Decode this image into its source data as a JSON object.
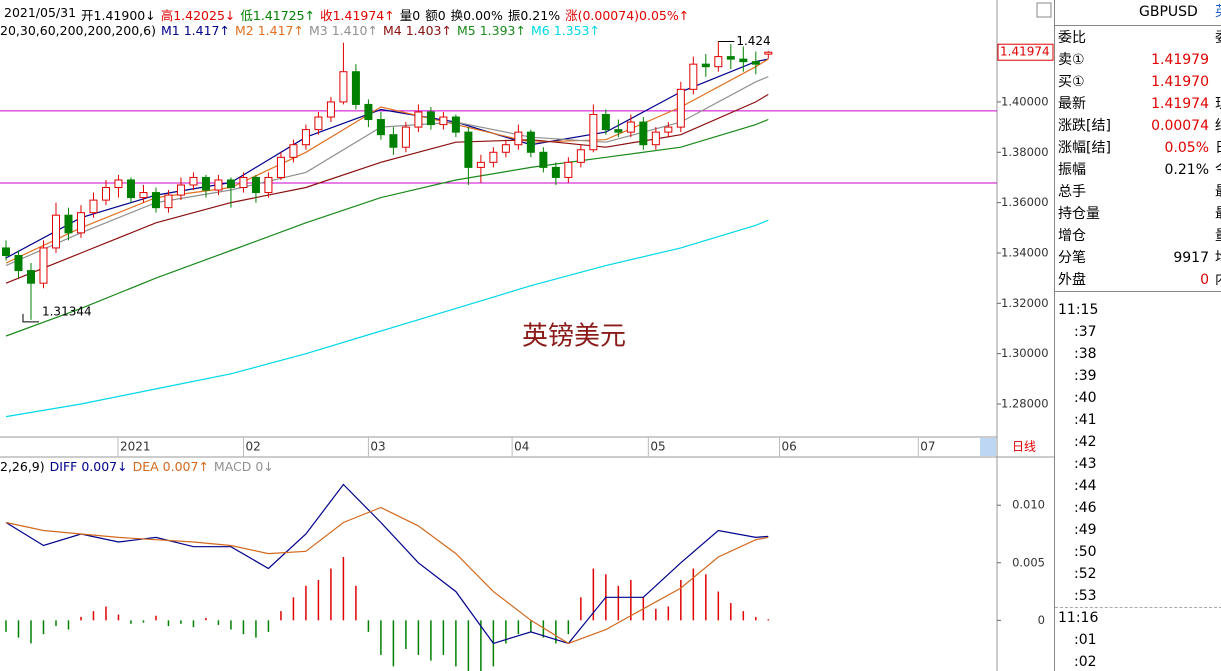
{
  "header": {
    "items": [
      {
        "text": "2021/05/31",
        "color": "#000000"
      },
      {
        "text": "开1.41900↓",
        "color": "#000000"
      },
      {
        "text": "高1.42025↓",
        "color": "#e00000"
      },
      {
        "text": "低1.41725↑",
        "color": "#008000"
      },
      {
        "text": "收1.41974↑",
        "color": "#e00000"
      },
      {
        "text": "量0",
        "color": "#000000"
      },
      {
        "text": "额0",
        "color": "#000000"
      },
      {
        "text": "换0.00%",
        "color": "#000000"
      },
      {
        "text": "振0.21%",
        "color": "#000000"
      },
      {
        "text": "涨(0.00074)0.05%↑",
        "color": "#e00000"
      }
    ],
    "ma_params": "20,30,60,200,200,200,6)"
  },
  "chart_data": [
    {
      "type": "candlestick",
      "up_color": "#e00000",
      "down_color": "#008000",
      "xlim": [
        -0.48,
        79.3
      ],
      "xticks": [
        {
          "value": 8.96,
          "label": "2021"
        },
        {
          "value": 19,
          "label": "02"
        },
        {
          "value": 29,
          "label": "03"
        },
        {
          "value": 40.5,
          "label": "04"
        },
        {
          "value": 51.4,
          "label": "05"
        },
        {
          "value": 61.9,
          "label": "06"
        },
        {
          "value": 73,
          "label": "07"
        }
      ],
      "ylim": [
        1.2669,
        1.4385
      ],
      "yticks": [
        {
          "value": 1.28,
          "label": "1.28000"
        },
        {
          "value": 1.3,
          "label": "1.30000"
        },
        {
          "value": 1.32,
          "label": "1.32000"
        },
        {
          "value": 1.34,
          "label": "1.34000"
        },
        {
          "value": 1.36,
          "label": "1.36000"
        },
        {
          "value": 1.38,
          "label": "1.38000"
        },
        {
          "value": 1.4,
          "label": "1.40000"
        }
      ],
      "hlines": [
        1.39642,
        1.3678
      ],
      "hline_color": "#cc00cc",
      "watermark": "英镑美元",
      "period_label": "日线",
      "candles": [
        [
          1.342,
          1.345,
          1.337,
          1.339
        ],
        [
          1.339,
          1.341,
          1.33,
          1.333
        ],
        [
          1.333,
          1.336,
          1.31344,
          1.328
        ],
        [
          1.328,
          1.345,
          1.326,
          1.342
        ],
        [
          1.342,
          1.36,
          1.34,
          1.355
        ],
        [
          1.355,
          1.358,
          1.345,
          1.348
        ],
        [
          1.348,
          1.359,
          1.346,
          1.356
        ],
        [
          1.356,
          1.364,
          1.354,
          1.361
        ],
        [
          1.361,
          1.369,
          1.359,
          1.366
        ],
        [
          1.366,
          1.371,
          1.362,
          1.369
        ],
        [
          1.369,
          1.37,
          1.36,
          1.362
        ],
        [
          1.362,
          1.367,
          1.36,
          1.364
        ],
        [
          1.364,
          1.366,
          1.356,
          1.358
        ],
        [
          1.358,
          1.365,
          1.356,
          1.363
        ],
        [
          1.363,
          1.37,
          1.361,
          1.367
        ],
        [
          1.367,
          1.372,
          1.365,
          1.37
        ],
        [
          1.37,
          1.371,
          1.362,
          1.365
        ],
        [
          1.365,
          1.371,
          1.363,
          1.369
        ],
        [
          1.369,
          1.37,
          1.358,
          1.366
        ],
        [
          1.366,
          1.372,
          1.364,
          1.37
        ],
        [
          1.37,
          1.371,
          1.36,
          1.364
        ],
        [
          1.364,
          1.372,
          1.362,
          1.37
        ],
        [
          1.37,
          1.38,
          1.369,
          1.378
        ],
        [
          1.378,
          1.385,
          1.376,
          1.383
        ],
        [
          1.383,
          1.391,
          1.381,
          1.389
        ],
        [
          1.389,
          1.396,
          1.387,
          1.394
        ],
        [
          1.394,
          1.402,
          1.392,
          1.4
        ],
        [
          1.4,
          1.42353,
          1.399,
          1.412
        ],
        [
          1.412,
          1.415,
          1.397,
          1.399
        ],
        [
          1.399,
          1.401,
          1.39,
          1.393
        ],
        [
          1.393,
          1.396,
          1.385,
          1.387
        ],
        [
          1.387,
          1.39,
          1.379,
          1.382
        ],
        [
          1.382,
          1.392,
          1.38,
          1.39
        ],
        [
          1.39,
          1.399,
          1.388,
          1.396
        ],
        [
          1.396,
          1.398,
          1.389,
          1.391
        ],
        [
          1.391,
          1.396,
          1.389,
          1.394
        ],
        [
          1.394,
          1.395,
          1.386,
          1.388
        ],
        [
          1.388,
          1.39,
          1.367,
          1.374
        ],
        [
          1.374,
          1.379,
          1.368,
          1.376
        ],
        [
          1.376,
          1.382,
          1.374,
          1.38
        ],
        [
          1.38,
          1.385,
          1.378,
          1.383
        ],
        [
          1.383,
          1.391,
          1.381,
          1.388
        ],
        [
          1.388,
          1.389,
          1.378,
          1.38
        ],
        [
          1.38,
          1.382,
          1.372,
          1.374
        ],
        [
          1.374,
          1.376,
          1.367,
          1.37
        ],
        [
          1.37,
          1.378,
          1.368,
          1.376
        ],
        [
          1.376,
          1.383,
          1.374,
          1.381
        ],
        [
          1.381,
          1.399,
          1.38,
          1.395
        ],
        [
          1.395,
          1.397,
          1.387,
          1.389
        ],
        [
          1.389,
          1.393,
          1.386,
          1.388
        ],
        [
          1.388,
          1.395,
          1.386,
          1.392
        ],
        [
          1.392,
          1.394,
          1.381,
          1.383
        ],
        [
          1.383,
          1.39,
          1.381,
          1.388
        ],
        [
          1.388,
          1.392,
          1.386,
          1.39
        ],
        [
          1.39,
          1.408,
          1.388,
          1.405
        ],
        [
          1.405,
          1.418,
          1.403,
          1.415
        ],
        [
          1.415,
          1.419,
          1.41,
          1.414
        ],
        [
          1.414,
          1.424,
          1.412,
          1.418
        ],
        [
          1.418,
          1.423,
          1.413,
          1.417
        ],
        [
          1.417,
          1.422,
          1.412,
          1.416
        ],
        [
          1.416,
          1.42,
          1.411,
          1.415
        ],
        [
          1.419,
          1.42025,
          1.41725,
          1.41974
        ]
      ],
      "series": [
        {
          "name": "M1",
          "value_label": "1.417↑",
          "color": "#00008b",
          "x": [
            0,
            6,
            12,
            18,
            24,
            30,
            36,
            42,
            48,
            54,
            60,
            61
          ],
          "values": [
            1.338,
            1.354,
            1.363,
            1.368,
            1.386,
            1.397,
            1.392,
            1.383,
            1.388,
            1.404,
            1.416,
            1.417
          ]
        },
        {
          "name": "M2",
          "value_label": "1.417↑",
          "color": "#e07020",
          "x": [
            0,
            6,
            12,
            18,
            24,
            30,
            36,
            42,
            48,
            54,
            60,
            61
          ],
          "values": [
            1.336,
            1.35,
            1.362,
            1.366,
            1.38,
            1.398,
            1.391,
            1.384,
            1.385,
            1.398,
            1.414,
            1.417
          ]
        },
        {
          "name": "M3",
          "value_label": "1.410↑",
          "color": "#909090",
          "x": [
            0,
            6,
            12,
            18,
            24,
            30,
            36,
            42,
            48,
            54,
            60,
            61
          ],
          "values": [
            1.335,
            1.348,
            1.36,
            1.365,
            1.372,
            1.39,
            1.392,
            1.386,
            1.384,
            1.392,
            1.408,
            1.41
          ]
        },
        {
          "name": "M4",
          "value_label": "1.403↑",
          "color": "#8b1010",
          "x": [
            0,
            6,
            12,
            18,
            24,
            30,
            36,
            42,
            48,
            54,
            60,
            61
          ],
          "values": [
            1.328,
            1.34,
            1.352,
            1.36,
            1.366,
            1.376,
            1.384,
            1.385,
            1.382,
            1.387,
            1.4,
            1.403
          ]
        },
        {
          "name": "M5",
          "value_label": "1.393↑",
          "color": "#1a8a1a",
          "x": [
            0,
            6,
            12,
            18,
            24,
            30,
            36,
            42,
            48,
            54,
            60,
            61
          ],
          "values": [
            1.307,
            1.318,
            1.33,
            1.341,
            1.352,
            1.362,
            1.369,
            1.374,
            1.378,
            1.382,
            1.391,
            1.393
          ]
        },
        {
          "name": "M6",
          "value_label": "1.353↑",
          "color": "#00d8e8",
          "x": [
            0,
            6,
            12,
            18,
            24,
            30,
            36,
            42,
            48,
            54,
            60,
            61
          ],
          "values": [
            1.275,
            1.28,
            1.286,
            1.292,
            1.3,
            1.309,
            1.318,
            1.327,
            1.335,
            1.342,
            1.351,
            1.353
          ]
        }
      ]
    },
    {
      "type": "macd",
      "params": "2,26,9)",
      "xlim": [
        -0.48,
        79.3
      ],
      "ylim": [
        -0.0044,
        0.0141
      ],
      "yticks": [
        {
          "value": 0.01,
          "label": "0.010"
        },
        {
          "value": 0.005,
          "label": "0.005"
        },
        0
      ],
      "series": [
        {
          "name": "DIFF",
          "value_label": "0.007↓",
          "color": "#00008b",
          "x": [
            0,
            3,
            6,
            9,
            12,
            15,
            18,
            21,
            24,
            27,
            30,
            33,
            36,
            39,
            42,
            45,
            48,
            51,
            54,
            57,
            60,
            61
          ],
          "values": [
            0.0085,
            0.0065,
            0.0075,
            0.0068,
            0.0072,
            0.0064,
            0.0064,
            0.0045,
            0.0075,
            0.0118,
            0.0085,
            0.005,
            0.0025,
            -0.002,
            -0.001,
            -0.002,
            0.002,
            0.002,
            0.005,
            0.0078,
            0.0072,
            0.0073
          ]
        },
        {
          "name": "DEA",
          "value_label": "0.007↑",
          "color": "#d2691e",
          "x": [
            0,
            3,
            6,
            9,
            12,
            15,
            18,
            21,
            24,
            27,
            30,
            33,
            36,
            39,
            42,
            45,
            48,
            51,
            54,
            57,
            60,
            61
          ],
          "values": [
            0.0085,
            0.0078,
            0.0075,
            0.0072,
            0.007,
            0.0068,
            0.0065,
            0.0058,
            0.006,
            0.0085,
            0.0098,
            0.0082,
            0.0058,
            0.0025,
            0,
            -0.002,
            -0.0008,
            0.001,
            0.0028,
            0.0055,
            0.007,
            0.0072
          ]
        }
      ],
      "histogram": {
        "name": "MACD",
        "value_label": "0↓",
        "label_color": "#909090",
        "up_color": "#e00000",
        "down_color": "#008000",
        "values": [
          -0.001,
          -0.0015,
          -0.002,
          -0.0012,
          -0.0005,
          -0.0008,
          0.0003,
          0.0008,
          0.0012,
          0.0005,
          -0.0003,
          -0.0002,
          0.0004,
          -0.0005,
          -0.0003,
          -0.0006,
          0.0002,
          -0.0004,
          -0.0008,
          -0.0012,
          -0.0015,
          -0.001,
          0.0008,
          0.002,
          0.003,
          0.0035,
          0.0045,
          0.0055,
          0.003,
          -0.001,
          -0.003,
          -0.004,
          -0.0025,
          -0.003,
          -0.0035,
          -0.003,
          -0.004,
          -0.0055,
          -0.005,
          -0.004,
          -0.002,
          -0.0012,
          -0.001,
          -0.0015,
          -0.002,
          -0.0012,
          0.002,
          0.0045,
          0.004,
          0.003,
          0.0035,
          0.002,
          0.001,
          0.0012,
          0.0035,
          0.0045,
          0.004,
          0.0025,
          0.0015,
          0.0008,
          0.0003,
          0.0001
        ]
      }
    }
  ],
  "panel": {
    "title": "GBPUSD",
    "title_extra": "英",
    "rows": [
      {
        "label": "委比",
        "extra": "委"
      },
      {
        "label": "卖①",
        "value": "1.41979",
        "color": "#e00000"
      },
      {
        "label": "买①",
        "value": "1.41970",
        "color": "#e00000"
      },
      {
        "label": "最新",
        "value": "1.41974",
        "color": "#e00000",
        "extra": "现"
      },
      {
        "label": "涨跌[结]",
        "value": "0.00074",
        "color": "#e00000",
        "extra": "结"
      },
      {
        "label": "涨幅[结]",
        "value": "0.05%",
        "color": "#e00000",
        "extra": "日"
      },
      {
        "label": "振幅",
        "value": "0.21%",
        "color": "#000000",
        "extra": "今"
      },
      {
        "label": "总手",
        "extra": "最"
      },
      {
        "label": "持仓量",
        "extra": "最"
      },
      {
        "label": "增仓",
        "extra": "量"
      },
      {
        "label": "分笔",
        "value": "9917",
        "color": "#000000",
        "extra": "均"
      },
      {
        "label": "外盘",
        "value": "0",
        "color": "#e00000",
        "extra": "内"
      }
    ],
    "times": [
      "11:15",
      ":37",
      ":38",
      ":39",
      ":40",
      ":41",
      ":42",
      ":43",
      ":44",
      ":46",
      ":49",
      ":50",
      ":52",
      ":53",
      "11:16",
      ":01",
      ":02"
    ]
  }
}
